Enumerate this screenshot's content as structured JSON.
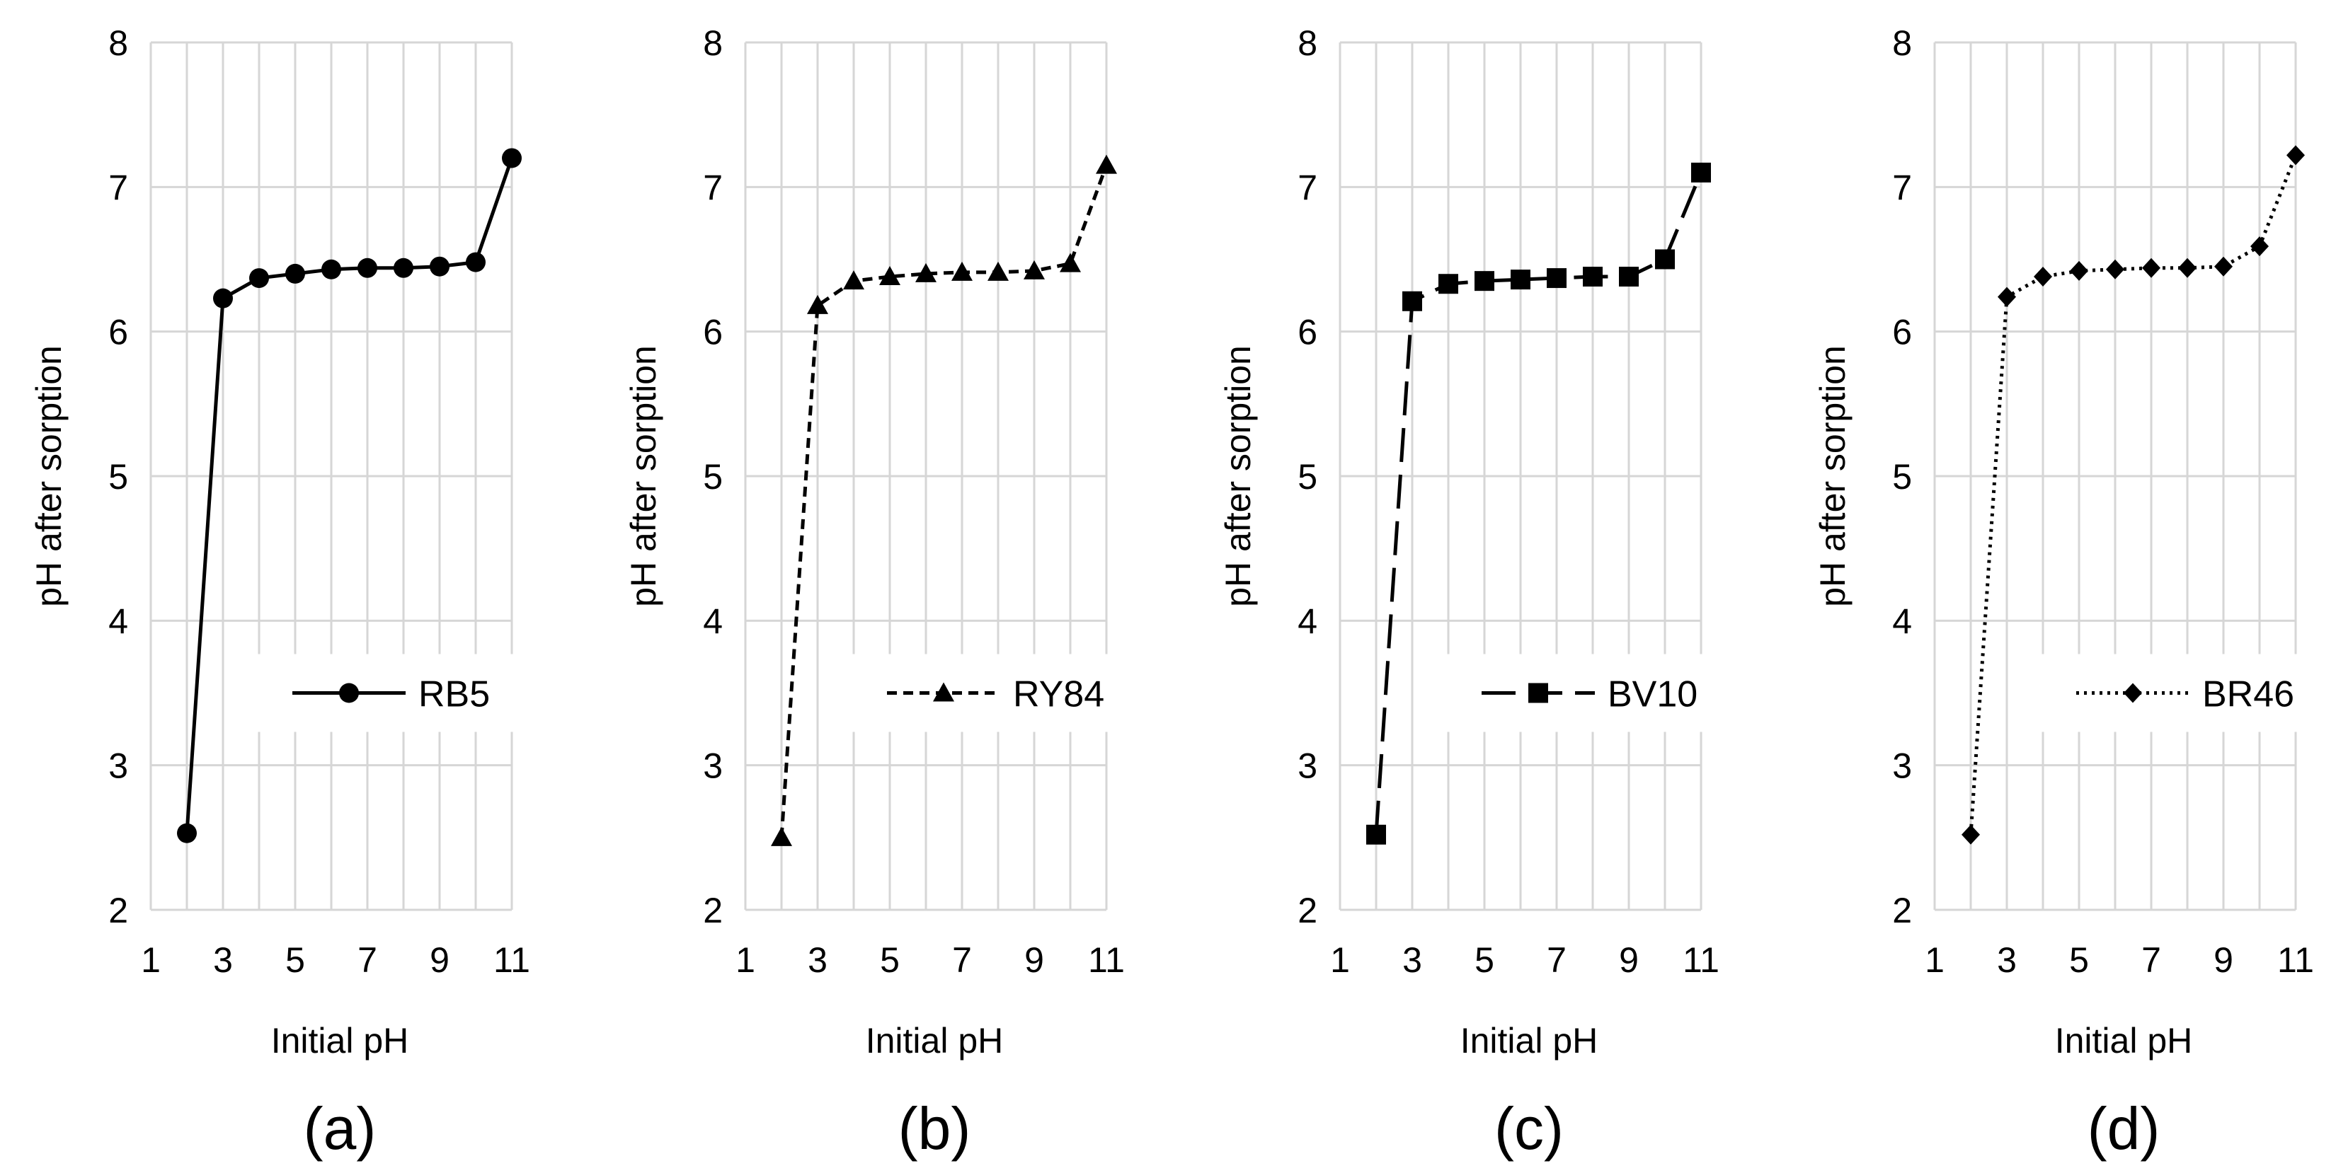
{
  "chart_data": [
    {
      "type": "line",
      "panel_label": "(a)",
      "xlabel": "Initial pH",
      "ylabel": "pH after sorption",
      "xlim": [
        1,
        11
      ],
      "ylim": [
        2,
        8
      ],
      "x_ticks": [
        "1",
        "3",
        "5",
        "7",
        "9",
        "11"
      ],
      "y_ticks": [
        "2",
        "3",
        "4",
        "5",
        "6",
        "7",
        "8"
      ],
      "grid": true,
      "legend_position": "lower-right",
      "series": [
        {
          "name": "RB5",
          "marker": "circle",
          "line_style": "solid",
          "x": [
            2,
            3,
            4,
            5,
            6,
            7,
            8,
            9,
            10,
            11
          ],
          "y": [
            2.53,
            6.23,
            6.37,
            6.4,
            6.43,
            6.44,
            6.44,
            6.45,
            6.48,
            7.2
          ]
        }
      ]
    },
    {
      "type": "line",
      "panel_label": "(b)",
      "xlabel": "Initial pH",
      "ylabel": "pH after sorption",
      "xlim": [
        1,
        11
      ],
      "ylim": [
        2,
        8
      ],
      "x_ticks": [
        "1",
        "3",
        "5",
        "7",
        "9",
        "11"
      ],
      "y_ticks": [
        "2",
        "3",
        "4",
        "5",
        "6",
        "7",
        "8"
      ],
      "grid": true,
      "legend_position": "lower-right",
      "series": [
        {
          "name": "RY84",
          "marker": "triangle",
          "line_style": "dashed",
          "x": [
            2,
            3,
            4,
            5,
            6,
            7,
            8,
            9,
            10,
            11
          ],
          "y": [
            2.5,
            6.18,
            6.35,
            6.38,
            6.4,
            6.41,
            6.41,
            6.42,
            6.47,
            7.15
          ]
        }
      ]
    },
    {
      "type": "line",
      "panel_label": "(c)",
      "xlabel": "Initial pH",
      "ylabel": "pH after sorption",
      "xlim": [
        1,
        11
      ],
      "ylim": [
        2,
        8
      ],
      "x_ticks": [
        "1",
        "3",
        "5",
        "7",
        "9",
        "11"
      ],
      "y_ticks": [
        "2",
        "3",
        "4",
        "5",
        "6",
        "7",
        "8"
      ],
      "grid": true,
      "legend_position": "lower-right",
      "series": [
        {
          "name": "BV10",
          "marker": "square",
          "line_style": "long-dash",
          "x": [
            2,
            3,
            4,
            5,
            6,
            7,
            8,
            9,
            10,
            11
          ],
          "y": [
            2.52,
            6.21,
            6.33,
            6.35,
            6.36,
            6.37,
            6.38,
            6.38,
            6.5,
            7.1
          ]
        }
      ]
    },
    {
      "type": "line",
      "panel_label": "(d)",
      "xlabel": "Initial pH",
      "ylabel": "pH after sorption",
      "xlim": [
        1,
        11
      ],
      "ylim": [
        2,
        8
      ],
      "x_ticks": [
        "1",
        "3",
        "5",
        "7",
        "9",
        "11"
      ],
      "y_ticks": [
        "2",
        "3",
        "4",
        "5",
        "6",
        "7",
        "8"
      ],
      "grid": true,
      "legend_position": "lower-right",
      "series": [
        {
          "name": "BR46",
          "marker": "diamond",
          "line_style": "dotted",
          "x": [
            2,
            3,
            4,
            5,
            6,
            7,
            8,
            9,
            10,
            11
          ],
          "y": [
            2.52,
            6.24,
            6.38,
            6.42,
            6.43,
            6.44,
            6.44,
            6.45,
            6.59,
            7.22
          ]
        }
      ]
    }
  ]
}
